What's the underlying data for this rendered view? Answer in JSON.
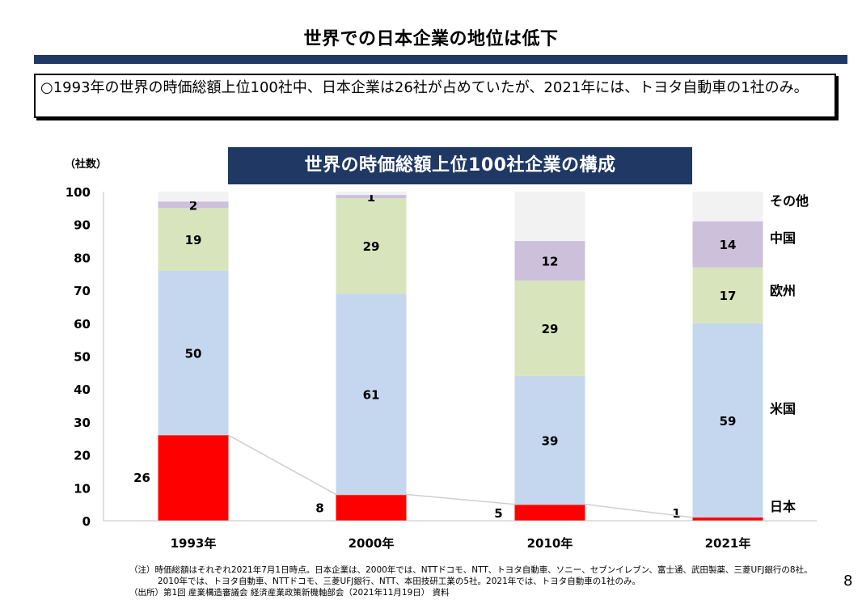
{
  "header": {
    "title": "世界での日本企業の地位は低下",
    "summary": "○1993年の世界の時価総額上位100社中、日本企業は26社が占めていたが、2021年には、トヨタ自動車の1社のみ。"
  },
  "chart_data": {
    "type": "bar",
    "stacked": true,
    "title": "世界の時価総額上位100社企業の構成",
    "ylabel": "（社数）",
    "xlabel": "",
    "ylim": [
      0,
      100
    ],
    "yticks": [
      0,
      10,
      20,
      30,
      40,
      50,
      60,
      70,
      80,
      90,
      100
    ],
    "categories": [
      "1993年",
      "2000年",
      "2010年",
      "2021年"
    ],
    "series": [
      {
        "name": "日本",
        "color": "#FF0000",
        "values": [
          26,
          8,
          5,
          1
        ]
      },
      {
        "name": "米国",
        "color": "#C5D7EF",
        "values": [
          50,
          61,
          39,
          59
        ]
      },
      {
        "name": "欧州",
        "color": "#D8E4BC",
        "values": [
          19,
          29,
          29,
          17
        ]
      },
      {
        "name": "中国",
        "color": "#CCC0DA",
        "values": [
          2,
          1,
          12,
          14
        ]
      },
      {
        "name": "その他",
        "color": "#F2F2F2",
        "values": [
          3,
          1,
          15,
          9
        ]
      }
    ],
    "data_labels": [
      [
        "26",
        "50",
        "19",
        "2",
        ""
      ],
      [
        "8",
        "61",
        "29",
        "1",
        ""
      ],
      [
        "5",
        "39",
        "29",
        "12",
        ""
      ],
      [
        "1",
        "59",
        "17",
        "14",
        ""
      ]
    ],
    "legend": "right-of-last-bar",
    "grid": false,
    "trend_line_series": "日本"
  },
  "footer": {
    "notes": [
      "（注）時価総額はそれぞれ2021年7月1日時点。日本企業は、2000年では、NTTドコモ、NTT、トヨタ自動車、ソニー、セブンイレブン、富士通、武田製薬、三菱UFJ銀行の8社。",
      "　　　 2010年では、トヨタ自動車、NTTドコモ、三菱UFJ銀行、NTT、本田技研工業の5社。2021年では、トヨタ自動車の1社のみ。",
      "（出所）第1回 産業構造審議会 経済産業政策新機軸部会（2021年11月19日） 資料"
    ],
    "page_number": "8"
  }
}
